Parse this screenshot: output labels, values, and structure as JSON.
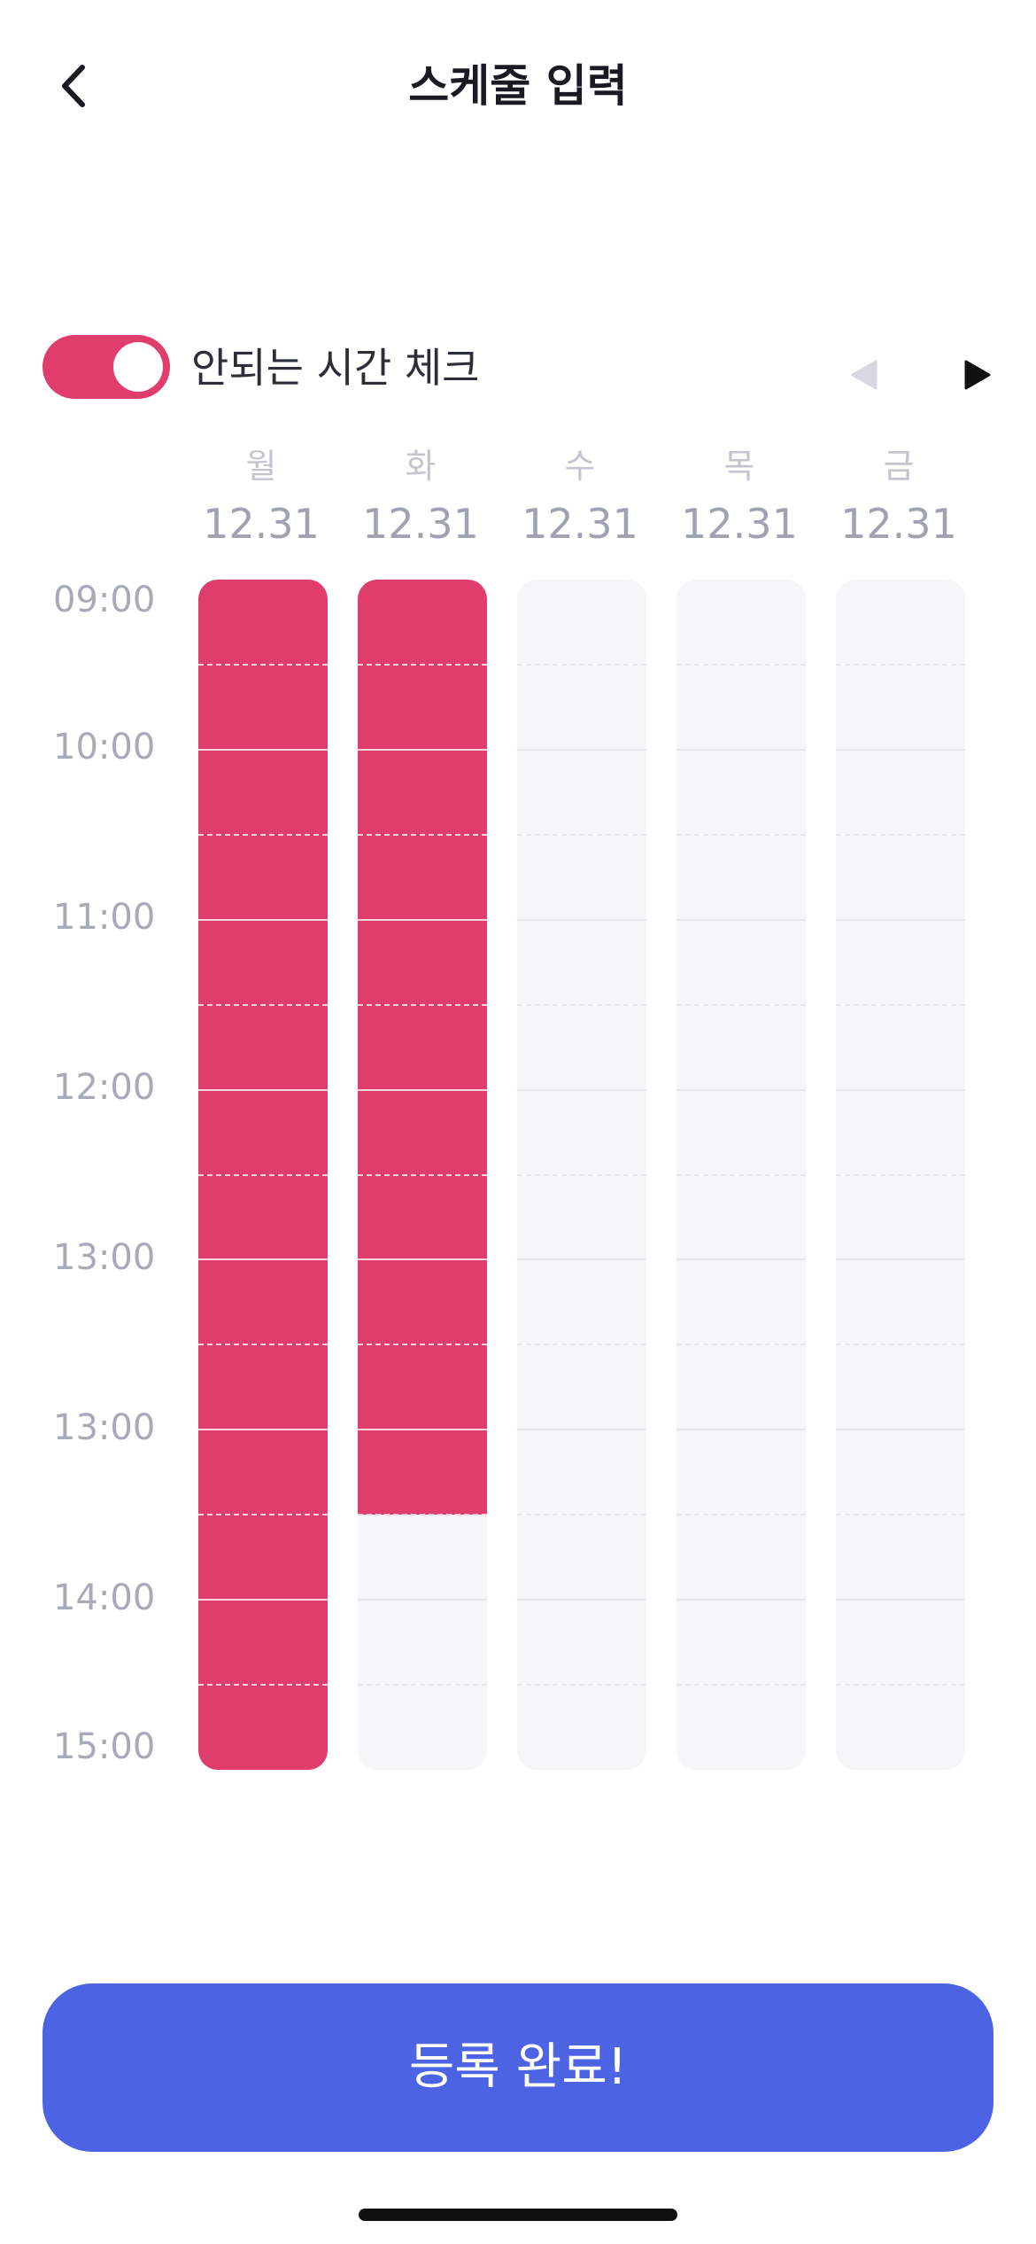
{
  "header": {
    "title": "스케줄 입력",
    "back_icon": "chevron-left-icon"
  },
  "controls": {
    "toggle_label": "안되는 시간 체크",
    "toggle_on": true,
    "prev_icon": "triangle-left-icon",
    "next_icon": "triangle-right-icon"
  },
  "days": [
    {
      "name": "월",
      "date": "12.31"
    },
    {
      "name": "화",
      "date": "12.31"
    },
    {
      "name": "수",
      "date": "12.31"
    },
    {
      "name": "목",
      "date": "12.31"
    },
    {
      "name": "금",
      "date": "12.31"
    }
  ],
  "time_labels": [
    "09:00",
    "10:00",
    "11:00",
    "12:00",
    "13:00",
    "13:00",
    "14:00",
    "15:00"
  ],
  "schedule": {
    "slots_per_column": 14,
    "checked_slots": [
      14,
      11,
      0,
      0,
      0
    ]
  },
  "submit": {
    "label": "등록 완료!"
  },
  "colors": {
    "accent": "#e03d6d",
    "primary_button": "#4c63e3",
    "empty_column": "#f5f6f8"
  }
}
